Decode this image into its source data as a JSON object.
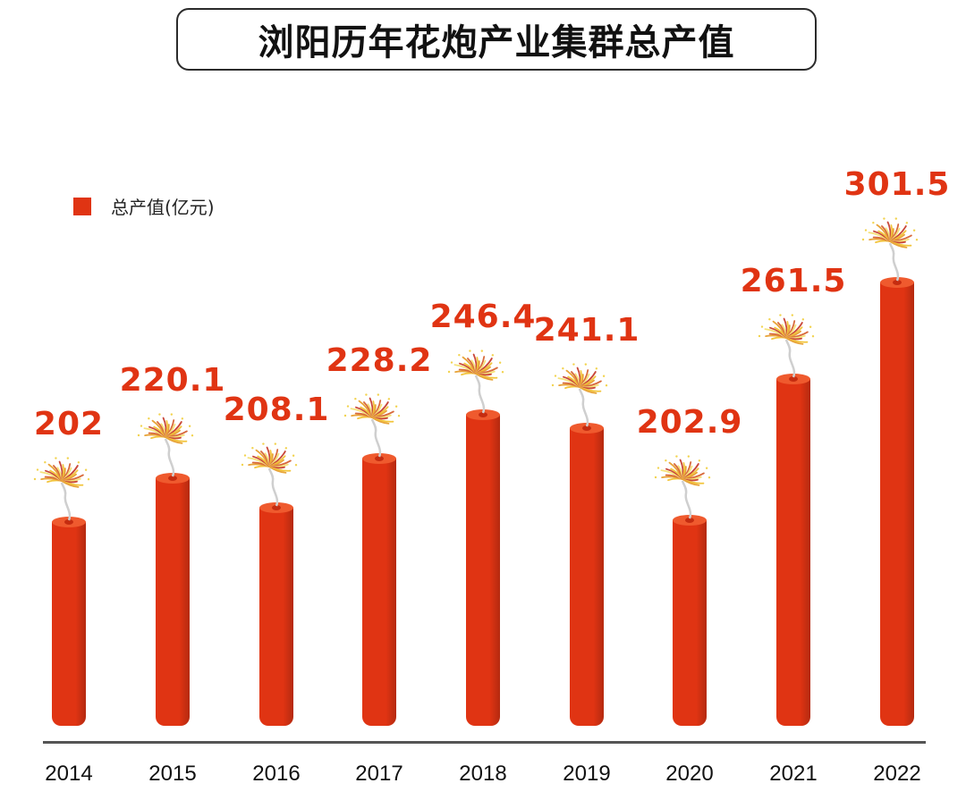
{
  "title": "浏阳历年花炮产业集群总产值",
  "legend": {
    "label": "总产值(亿元)",
    "color": "#e03413"
  },
  "chart_data": {
    "type": "bar",
    "title": "浏阳历年花炮产业集群总产值",
    "xlabel": "",
    "ylabel": "总产值(亿元)",
    "categories": [
      "2014",
      "2015",
      "2016",
      "2017",
      "2018",
      "2019",
      "2020",
      "2021",
      "2022"
    ],
    "series": [
      {
        "name": "总产值(亿元)",
        "values": [
          202,
          220.1,
          208.1,
          228.2,
          246.4,
          241.1,
          202.9,
          261.5,
          301.5
        ]
      }
    ],
    "value_labels": [
      "202",
      "220.1",
      "208.1",
      "228.2",
      "246.4",
      "241.1",
      "202.9",
      "261.5",
      "301.5"
    ],
    "grid": false,
    "legend_position": "top-left",
    "bar_color": "#e03413",
    "style": "firecracker bars with sparkler tops"
  }
}
